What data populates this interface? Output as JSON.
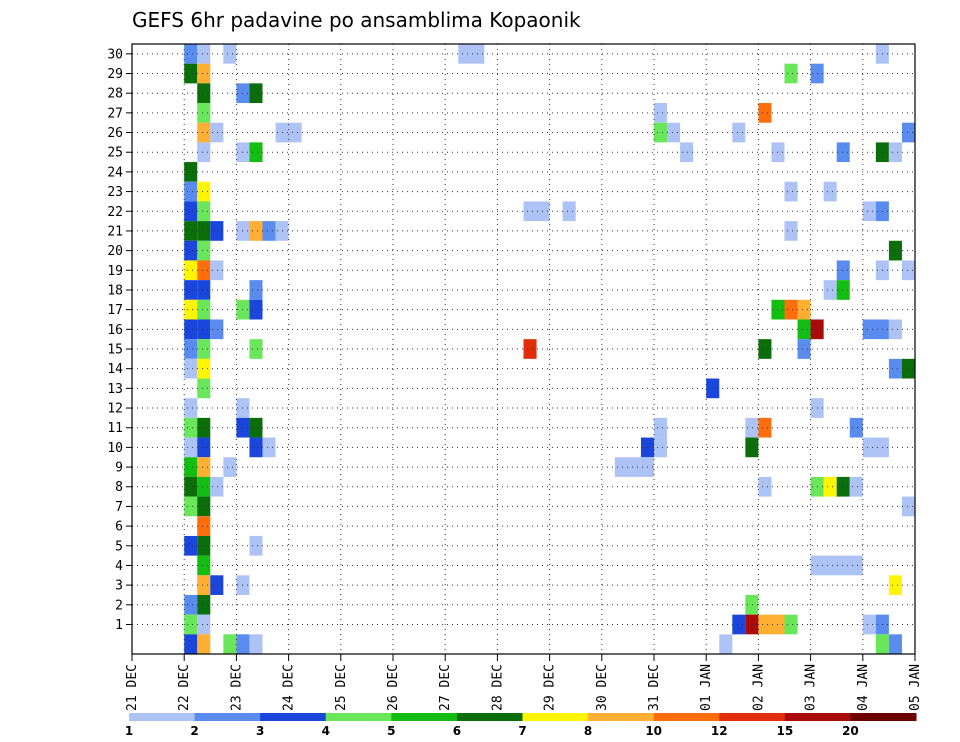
{
  "chart_data": {
    "type": "heatmap",
    "title": "GEFS 6hr padavine po ansamblima Kopaonik",
    "x_tick_labels": [
      "21 DEC",
      "22 DEC",
      "23 DEC",
      "24 DEC",
      "25 DEC",
      "26 DEC",
      "27 DEC",
      "28 DEC",
      "29 DEC",
      "30 DEC",
      "31 DEC",
      "01 JAN",
      "02 JAN",
      "03 JAN",
      "04 JAN",
      "05 JAN"
    ],
    "y_tick_labels": [
      "1",
      "2",
      "3",
      "4",
      "5",
      "6",
      "7",
      "8",
      "9",
      "10",
      "11",
      "12",
      "13",
      "14",
      "15",
      "16",
      "17",
      "18",
      "19",
      "20",
      "21",
      "22",
      "23",
      "24",
      "25",
      "26",
      "27",
      "28",
      "29",
      "30"
    ],
    "xlim_days": [
      0,
      15
    ],
    "ylim": [
      0,
      30
    ],
    "grid": true,
    "legend_position": "bottom",
    "legend": {
      "levels": [
        "1",
        "2",
        "3",
        "4",
        "5",
        "6",
        "7",
        "8",
        "10",
        "12",
        "15",
        "20"
      ],
      "colors": [
        "#aec3f5",
        "#5a8cf0",
        "#1a46dc",
        "#6ae65a",
        "#12be12",
        "#0a6e0a",
        "#fff500",
        "#ffaf32",
        "#ff6e0a",
        "#e12d0a",
        "#aa0a0a",
        "#6e0000"
      ]
    },
    "cells_note": "each cell: [day_offset_start, member, color_index(0-based into legend.colors), width_days]",
    "cells": [
      [
        1.0,
        30,
        1,
        0.25
      ],
      [
        1.25,
        30,
        0,
        0.25
      ],
      [
        1.75,
        30,
        0,
        0.25
      ],
      [
        6.25,
        30,
        0,
        0.5
      ],
      [
        14.25,
        30,
        0,
        0.25
      ],
      [
        1.0,
        29,
        5,
        0.25
      ],
      [
        1.25,
        29,
        7,
        0.25
      ],
      [
        12.5,
        29,
        3,
        0.25
      ],
      [
        13.0,
        29,
        1,
        0.25
      ],
      [
        1.25,
        28,
        5,
        0.25
      ],
      [
        2.0,
        28,
        1,
        0.25
      ],
      [
        2.25,
        28,
        5,
        0.25
      ],
      [
        1.25,
        27,
        3,
        0.25
      ],
      [
        10.0,
        27,
        0,
        0.25
      ],
      [
        12.0,
        27,
        8,
        0.25
      ],
      [
        1.25,
        26,
        7,
        0.25
      ],
      [
        1.5,
        26,
        0,
        0.25
      ],
      [
        2.75,
        26,
        0,
        0.5
      ],
      [
        10.0,
        26,
        3,
        0.25
      ],
      [
        10.25,
        26,
        0,
        0.25
      ],
      [
        11.5,
        26,
        0,
        0.25
      ],
      [
        14.75,
        26,
        1,
        0.25
      ],
      [
        1.25,
        25,
        0,
        0.25
      ],
      [
        2.0,
        25,
        0,
        0.25
      ],
      [
        2.25,
        25,
        4,
        0.25
      ],
      [
        10.5,
        25,
        0,
        0.25
      ],
      [
        12.25,
        25,
        0,
        0.25
      ],
      [
        13.5,
        25,
        1,
        0.25
      ],
      [
        14.25,
        25,
        5,
        0.25
      ],
      [
        14.5,
        25,
        0,
        0.25
      ],
      [
        1.0,
        24,
        5,
        0.25
      ],
      [
        1.0,
        23,
        1,
        0.25
      ],
      [
        1.25,
        23,
        6,
        0.25
      ],
      [
        12.5,
        23,
        0,
        0.25
      ],
      [
        13.25,
        23,
        0,
        0.25
      ],
      [
        1.0,
        22,
        2,
        0.25
      ],
      [
        1.25,
        22,
        3,
        0.25
      ],
      [
        7.5,
        22,
        0,
        0.5
      ],
      [
        8.25,
        22,
        0,
        0.25
      ],
      [
        14.0,
        22,
        0,
        0.25
      ],
      [
        14.25,
        22,
        1,
        0.25
      ],
      [
        1.0,
        21,
        5,
        0.25
      ],
      [
        1.25,
        21,
        5,
        0.25
      ],
      [
        1.5,
        21,
        2,
        0.25
      ],
      [
        2.0,
        21,
        0,
        0.25
      ],
      [
        2.25,
        21,
        7,
        0.25
      ],
      [
        2.5,
        21,
        1,
        0.25
      ],
      [
        2.75,
        21,
        0,
        0.25
      ],
      [
        12.5,
        21,
        0,
        0.25
      ],
      [
        1.0,
        20,
        2,
        0.25
      ],
      [
        1.25,
        20,
        3,
        0.25
      ],
      [
        14.5,
        20,
        5,
        0.25
      ],
      [
        1.0,
        19,
        6,
        0.25
      ],
      [
        1.25,
        19,
        8,
        0.25
      ],
      [
        1.5,
        19,
        0,
        0.25
      ],
      [
        13.5,
        19,
        1,
        0.25
      ],
      [
        14.25,
        19,
        0,
        0.25
      ],
      [
        14.75,
        19,
        0,
        0.25
      ],
      [
        1.0,
        18,
        2,
        0.25
      ],
      [
        1.25,
        18,
        2,
        0.25
      ],
      [
        2.25,
        18,
        1,
        0.25
      ],
      [
        13.25,
        18,
        0,
        0.25
      ],
      [
        13.5,
        18,
        4,
        0.25
      ],
      [
        1.0,
        17,
        6,
        0.25
      ],
      [
        1.25,
        17,
        3,
        0.25
      ],
      [
        2.0,
        17,
        3,
        0.25
      ],
      [
        2.25,
        17,
        2,
        0.25
      ],
      [
        12.25,
        17,
        4,
        0.25
      ],
      [
        12.5,
        17,
        8,
        0.25
      ],
      [
        12.75,
        17,
        7,
        0.25
      ],
      [
        1.0,
        16,
        2,
        0.25
      ],
      [
        1.25,
        16,
        2,
        0.25
      ],
      [
        1.5,
        16,
        1,
        0.25
      ],
      [
        12.75,
        16,
        4,
        0.25
      ],
      [
        13.0,
        16,
        10,
        0.25
      ],
      [
        14.0,
        16,
        1,
        0.5
      ],
      [
        14.5,
        16,
        0,
        0.25
      ],
      [
        1.0,
        15,
        1,
        0.25
      ],
      [
        1.25,
        15,
        3,
        0.25
      ],
      [
        2.25,
        15,
        3,
        0.25
      ],
      [
        7.5,
        15,
        9,
        0.25
      ],
      [
        12.0,
        15,
        5,
        0.25
      ],
      [
        12.75,
        15,
        1,
        0.25
      ],
      [
        1.0,
        14,
        0,
        0.25
      ],
      [
        1.25,
        14,
        6,
        0.25
      ],
      [
        14.5,
        14,
        1,
        0.25
      ],
      [
        14.75,
        14,
        5,
        0.25
      ],
      [
        1.25,
        13,
        3,
        0.25
      ],
      [
        11.0,
        13,
        2,
        0.25
      ],
      [
        1.0,
        12,
        0,
        0.25
      ],
      [
        2.0,
        12,
        0,
        0.25
      ],
      [
        13.0,
        12,
        0,
        0.25
      ],
      [
        1.0,
        11,
        3,
        0.25
      ],
      [
        1.25,
        11,
        5,
        0.25
      ],
      [
        2.0,
        11,
        2,
        0.25
      ],
      [
        2.25,
        11,
        5,
        0.25
      ],
      [
        10.0,
        11,
        0,
        0.25
      ],
      [
        11.75,
        11,
        0,
        0.25
      ],
      [
        12.0,
        11,
        8,
        0.25
      ],
      [
        13.75,
        11,
        1,
        0.25
      ],
      [
        1.0,
        10,
        0,
        0.25
      ],
      [
        1.25,
        10,
        2,
        0.25
      ],
      [
        2.25,
        10,
        2,
        0.25
      ],
      [
        2.5,
        10,
        0,
        0.25
      ],
      [
        9.75,
        10,
        2,
        0.25
      ],
      [
        10.0,
        10,
        0,
        0.25
      ],
      [
        11.75,
        10,
        5,
        0.25
      ],
      [
        14.0,
        10,
        0,
        0.5
      ],
      [
        1.0,
        9,
        4,
        0.25
      ],
      [
        1.25,
        9,
        7,
        0.25
      ],
      [
        1.75,
        9,
        0,
        0.25
      ],
      [
        9.25,
        9,
        0,
        0.75
      ],
      [
        1.0,
        8,
        5,
        0.25
      ],
      [
        1.25,
        8,
        4,
        0.25
      ],
      [
        1.5,
        8,
        0,
        0.25
      ],
      [
        12.0,
        8,
        0,
        0.25
      ],
      [
        13.0,
        8,
        3,
        0.25
      ],
      [
        13.25,
        8,
        6,
        0.25
      ],
      [
        13.5,
        8,
        5,
        0.25
      ],
      [
        13.75,
        8,
        0,
        0.25
      ],
      [
        1.0,
        7,
        3,
        0.25
      ],
      [
        1.25,
        7,
        5,
        0.25
      ],
      [
        14.75,
        7,
        0,
        0.25
      ],
      [
        1.25,
        6,
        8,
        0.25
      ],
      [
        1.0,
        5,
        2,
        0.25
      ],
      [
        1.25,
        5,
        5,
        0.25
      ],
      [
        2.25,
        5,
        0,
        0.25
      ],
      [
        1.25,
        4,
        4,
        0.25
      ],
      [
        13.0,
        4,
        0,
        1.0
      ],
      [
        1.25,
        3,
        7,
        0.25
      ],
      [
        1.5,
        3,
        2,
        0.25
      ],
      [
        2.0,
        3,
        0,
        0.25
      ],
      [
        14.5,
        3,
        6,
        0.25
      ],
      [
        1.0,
        2,
        1,
        0.25
      ],
      [
        1.25,
        2,
        5,
        0.25
      ],
      [
        11.75,
        2,
        3,
        0.25
      ],
      [
        1.0,
        1,
        3,
        0.25
      ],
      [
        1.25,
        1,
        0,
        0.25
      ],
      [
        11.5,
        1,
        2,
        0.25
      ],
      [
        11.75,
        1,
        10,
        0.25
      ],
      [
        12.0,
        1,
        7,
        0.5
      ],
      [
        12.5,
        1,
        3,
        0.25
      ],
      [
        14.0,
        1,
        0,
        0.25
      ],
      [
        14.25,
        1,
        1,
        0.25
      ],
      [
        1.0,
        0,
        2,
        0.25
      ],
      [
        1.25,
        0,
        7,
        0.25
      ],
      [
        1.75,
        0,
        3,
        0.25
      ],
      [
        2.0,
        0,
        1,
        0.25
      ],
      [
        2.25,
        0,
        0,
        0.25
      ],
      [
        11.25,
        0,
        0,
        0.25
      ],
      [
        14.25,
        0,
        3,
        0.25
      ],
      [
        14.5,
        0,
        1,
        0.25
      ]
    ]
  }
}
